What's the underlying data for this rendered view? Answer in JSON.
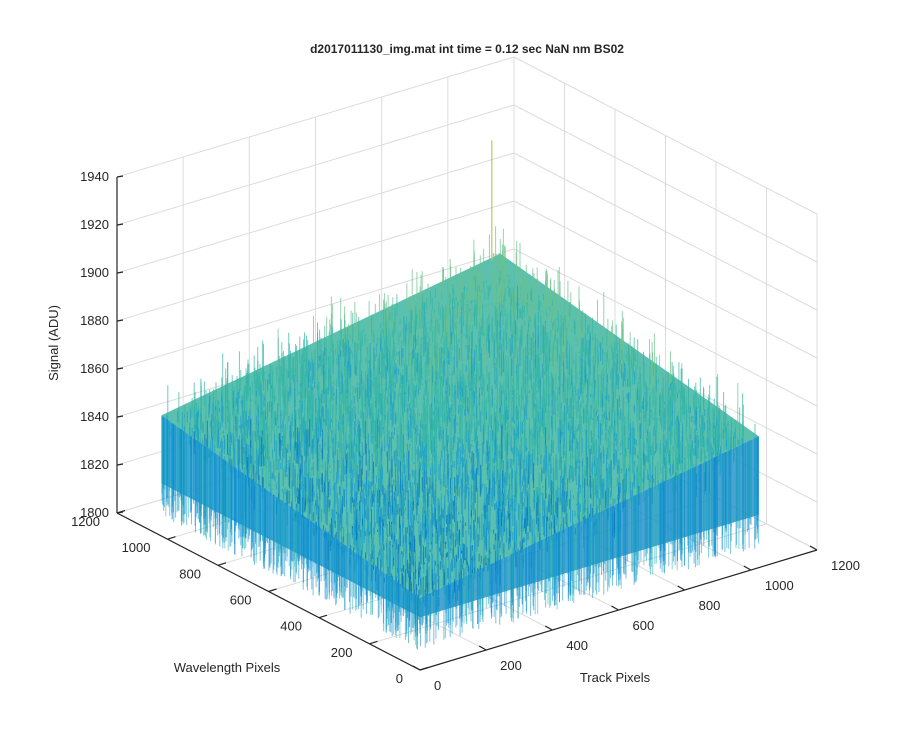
{
  "chart_data": {
    "type": "surface",
    "title": "d2017011130_img.mat int time = 0.12 sec  NaN nm BS02",
    "xlabel": "Track Pixels",
    "ylabel": "Wavelength Pixels",
    "zlabel": "Signal (ADU)",
    "xlim": [
      0,
      1200
    ],
    "ylim": [
      0,
      1200
    ],
    "zlim": [
      1800,
      1940
    ],
    "x_ticks": [
      "0",
      "200",
      "400",
      "600",
      "800",
      "1000",
      "1200"
    ],
    "y_ticks": [
      "0",
      "200",
      "400",
      "600",
      "800",
      "1000",
      "1200"
    ],
    "z_ticks": [
      "1800",
      "1820",
      "1840",
      "1860",
      "1880",
      "1900",
      "1920",
      "1940"
    ],
    "grid": true,
    "colormap": [
      "#0072bd",
      "#1a9dcc",
      "#33b6a7",
      "#6cc28d",
      "#b7c95c",
      "#e6c83a"
    ],
    "surface": {
      "x_extent": [
        0,
        1024
      ],
      "y_extent": [
        0,
        1024
      ],
      "base_signal_range": [
        1830,
        1875
      ],
      "noise_amplitude": 12,
      "peak_signal": 1925
    }
  }
}
